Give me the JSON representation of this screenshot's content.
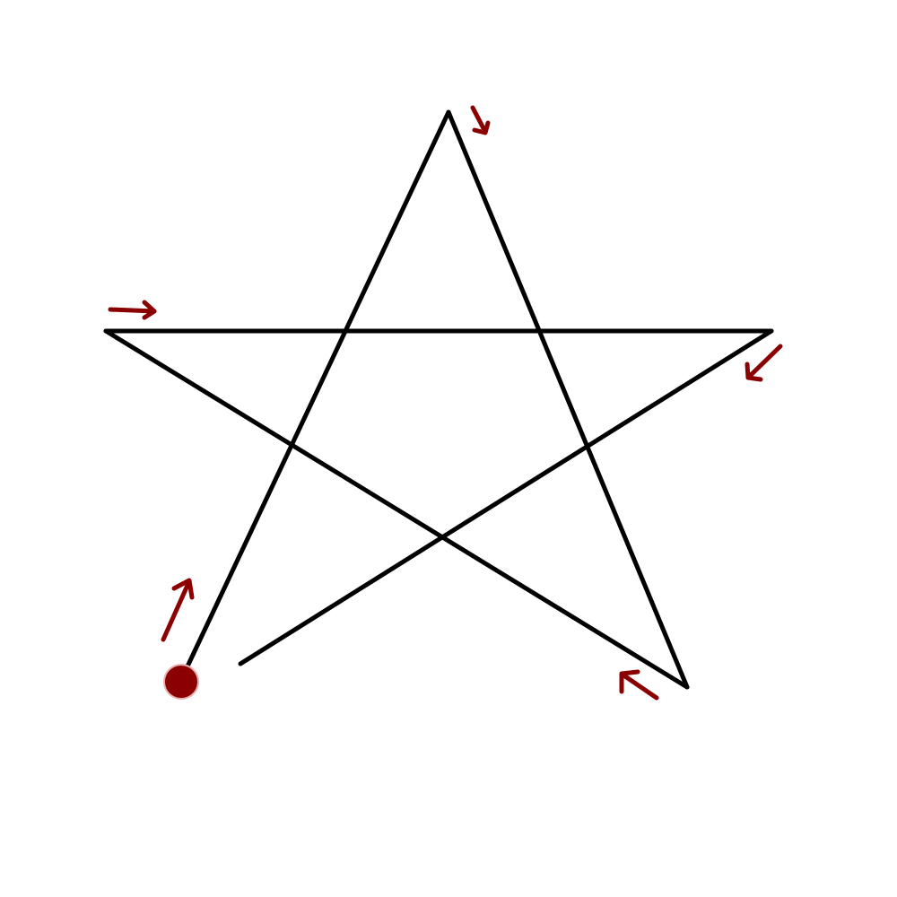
{
  "diagram": {
    "kind": "stroke-order",
    "shape": "five-pointed-star",
    "stroke_count": 5,
    "start_marker": "start-dot",
    "colors": {
      "background": "#ffffff",
      "star_stroke": "#000000",
      "annotation": "#8b0000",
      "start_dot": "#8b0000"
    },
    "strokes": [
      {
        "order": 1,
        "from": "bottom-left",
        "to": "top",
        "direction_icon": "arrow-up-right-icon"
      },
      {
        "order": 2,
        "from": "top",
        "to": "bottom-right",
        "direction_icon": "arrow-down-right-icon"
      },
      {
        "order": 3,
        "from": "bottom-right",
        "to": "left",
        "direction_icon": "arrow-up-left-icon"
      },
      {
        "order": 4,
        "from": "left",
        "to": "right",
        "direction_icon": "arrow-right-icon"
      },
      {
        "order": 5,
        "from": "right",
        "to": "bottom-left",
        "direction_icon": "arrow-down-left-icon"
      }
    ]
  }
}
